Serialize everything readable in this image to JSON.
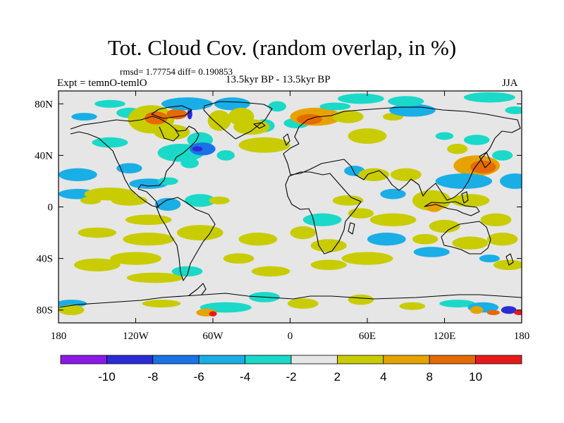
{
  "map": {
    "title": "Tot. Cloud Cov. (random overlap, in %)",
    "stats_line": "rmsd= 1.77754 diff= 0.190853",
    "experiment_label": "Expt = temnO-temlO",
    "period_label": "13.5kyr BP - 13.5kyr BP",
    "season_label": "JJA",
    "projection": "cylindrical equidistant",
    "lon_range": [
      -180,
      180
    ],
    "lat_range": [
      -90,
      90
    ],
    "lon_ticks": [
      {
        "value": -180,
        "label": "180"
      },
      {
        "value": -120,
        "label": "120W"
      },
      {
        "value": -60,
        "label": "60W"
      },
      {
        "value": 0,
        "label": "0"
      },
      {
        "value": 60,
        "label": "60E"
      },
      {
        "value": 120,
        "label": "120E"
      },
      {
        "value": 180,
        "label": "180"
      }
    ],
    "lat_ticks": [
      {
        "value": 80,
        "label": "80N"
      },
      {
        "value": 40,
        "label": "40N"
      },
      {
        "value": 0,
        "label": "0"
      },
      {
        "value": -40,
        "label": "40S"
      },
      {
        "value": -80,
        "label": "80S"
      }
    ],
    "colorbar": {
      "colors": [
        "#8c1ae6",
        "#2b2bd6",
        "#1a73e6",
        "#1aaee6",
        "#1ad9c8",
        "#e6e6e6",
        "#c8cc00",
        "#e6a300",
        "#e66a00",
        "#e61a1a"
      ],
      "tick_labels": [
        "-10",
        "-8",
        "-6",
        "-4",
        "-2",
        "2",
        "4",
        "8",
        "10"
      ]
    },
    "anomaly_regions": [
      {
        "lon": 155,
        "lat": 85,
        "rx": 20,
        "ry": 4,
        "level": 4
      },
      {
        "lon": 175,
        "lat": 75,
        "rx": 8,
        "ry": 3,
        "level": 4
      },
      {
        "lon": -140,
        "lat": 80,
        "rx": 12,
        "ry": 3,
        "level": 4
      },
      {
        "lon": -160,
        "lat": 70,
        "rx": 10,
        "ry": 3,
        "level": 3
      },
      {
        "lon": -125,
        "lat": 73,
        "rx": 10,
        "ry": 4,
        "level": 4
      },
      {
        "lon": -108,
        "lat": 68,
        "rx": 18,
        "ry": 11,
        "level": 6
      },
      {
        "lon": -104,
        "lat": 69,
        "rx": 9,
        "ry": 5,
        "level": 8
      },
      {
        "lon": -88,
        "lat": 72,
        "rx": 8,
        "ry": 4,
        "level": 8
      },
      {
        "lon": -78,
        "lat": 72,
        "rx": 2,
        "ry": 4,
        "level": 1
      },
      {
        "lon": -92,
        "lat": 58,
        "rx": 14,
        "ry": 6,
        "level": 6
      },
      {
        "lon": -80,
        "lat": 80,
        "rx": 20,
        "ry": 5,
        "level": 3
      },
      {
        "lon": -45,
        "lat": 80,
        "rx": 14,
        "ry": 5,
        "level": 3
      },
      {
        "lon": -55,
        "lat": 67,
        "rx": 9,
        "ry": 8,
        "level": 6
      },
      {
        "lon": -38,
        "lat": 70,
        "rx": 10,
        "ry": 7,
        "level": 6
      },
      {
        "lon": -20,
        "lat": 63,
        "rx": 8,
        "ry": 5,
        "level": 4
      },
      {
        "lon": -10,
        "lat": 78,
        "rx": 7,
        "ry": 4,
        "level": 4
      },
      {
        "lon": -85,
        "lat": 42,
        "rx": 18,
        "ry": 7,
        "level": 4
      },
      {
        "lon": -70,
        "lat": 52,
        "rx": 10,
        "ry": 6,
        "level": 4
      },
      {
        "lon": -68,
        "lat": 45,
        "rx": 10,
        "ry": 5,
        "level": 2
      },
      {
        "lon": -72,
        "lat": 45,
        "rx": 4,
        "ry": 2,
        "level": 1
      },
      {
        "lon": -50,
        "lat": 40,
        "rx": 7,
        "ry": 4,
        "level": 4
      },
      {
        "lon": -78,
        "lat": 34,
        "rx": 7,
        "ry": 4,
        "level": 4
      },
      {
        "lon": -30,
        "lat": 62,
        "rx": 14,
        "ry": 6,
        "level": 6
      },
      {
        "lon": -20,
        "lat": 48,
        "rx": 20,
        "ry": 6,
        "level": 6
      },
      {
        "lon": 5,
        "lat": 65,
        "rx": 10,
        "ry": 4,
        "level": 4
      },
      {
        "lon": 20,
        "lat": 70,
        "rx": 20,
        "ry": 7,
        "level": 7
      },
      {
        "lon": 15,
        "lat": 68,
        "rx": 10,
        "ry": 4,
        "level": 8
      },
      {
        "lon": 45,
        "lat": 70,
        "rx": 12,
        "ry": 5,
        "level": 6
      },
      {
        "lon": 35,
        "lat": 78,
        "rx": 12,
        "ry": 3,
        "level": 4
      },
      {
        "lon": 60,
        "lat": 55,
        "rx": 15,
        "ry": 6,
        "level": 6
      },
      {
        "lon": 80,
        "lat": 70,
        "rx": 8,
        "ry": 3,
        "level": 6
      },
      {
        "lon": 95,
        "lat": 75,
        "rx": 18,
        "ry": 5,
        "level": 3
      },
      {
        "lon": 90,
        "lat": 82,
        "rx": 14,
        "ry": 4,
        "level": 4
      },
      {
        "lon": 55,
        "lat": 84,
        "rx": 18,
        "ry": 4,
        "level": 4
      },
      {
        "lon": 145,
        "lat": 52,
        "rx": 10,
        "ry": 4,
        "level": 4
      },
      {
        "lon": 120,
        "lat": 55,
        "rx": 7,
        "ry": 3,
        "level": 4
      },
      {
        "lon": 130,
        "lat": 45,
        "rx": 8,
        "ry": 4,
        "level": 6
      },
      {
        "lon": 145,
        "lat": 32,
        "rx": 18,
        "ry": 8,
        "level": 7
      },
      {
        "lon": 150,
        "lat": 31,
        "rx": 10,
        "ry": 5,
        "level": 8
      },
      {
        "lon": 135,
        "lat": 20,
        "rx": 22,
        "ry": 6,
        "level": 3
      },
      {
        "lon": 175,
        "lat": 20,
        "rx": 12,
        "ry": 6,
        "level": 3
      },
      {
        "lon": 165,
        "lat": 40,
        "rx": 8,
        "ry": 4,
        "level": 4
      },
      {
        "lon": -165,
        "lat": 25,
        "rx": 15,
        "ry": 5,
        "level": 3
      },
      {
        "lon": -165,
        "lat": 10,
        "rx": 15,
        "ry": 4,
        "level": 3
      },
      {
        "lon": -140,
        "lat": 50,
        "rx": 14,
        "ry": 4,
        "level": 4
      },
      {
        "lon": -140,
        "lat": 10,
        "rx": 20,
        "ry": 5,
        "level": 6
      },
      {
        "lon": -155,
        "lat": 5,
        "rx": 8,
        "ry": 3,
        "level": 6
      },
      {
        "lon": -125,
        "lat": 30,
        "rx": 10,
        "ry": 4,
        "level": 3
      },
      {
        "lon": -110,
        "lat": 18,
        "rx": 15,
        "ry": 4,
        "level": 3
      },
      {
        "lon": -125,
        "lat": 5,
        "rx": 14,
        "ry": 4,
        "level": 6
      },
      {
        "lon": -95,
        "lat": 2,
        "rx": 10,
        "ry": 5,
        "level": 3
      },
      {
        "lon": -95,
        "lat": 20,
        "rx": 8,
        "ry": 3,
        "level": 4
      },
      {
        "lon": -70,
        "lat": 5,
        "rx": 12,
        "ry": 5,
        "level": 4
      },
      {
        "lon": -55,
        "lat": 5,
        "rx": 8,
        "ry": 3,
        "level": 6
      },
      {
        "lon": -70,
        "lat": -20,
        "rx": 18,
        "ry": 6,
        "level": 6
      },
      {
        "lon": -110,
        "lat": -10,
        "rx": 18,
        "ry": 4,
        "level": 6
      },
      {
        "lon": -150,
        "lat": -20,
        "rx": 15,
        "ry": 4,
        "level": 6
      },
      {
        "lon": -110,
        "lat": -25,
        "rx": 20,
        "ry": 5,
        "level": 6
      },
      {
        "lon": -120,
        "lat": -40,
        "rx": 20,
        "ry": 5,
        "level": 6
      },
      {
        "lon": -150,
        "lat": -45,
        "rx": 18,
        "ry": 5,
        "level": 6
      },
      {
        "lon": -105,
        "lat": -55,
        "rx": 22,
        "ry": 4,
        "level": 6
      },
      {
        "lon": -80,
        "lat": -50,
        "rx": 12,
        "ry": 4,
        "level": 4
      },
      {
        "lon": -40,
        "lat": -40,
        "rx": 12,
        "ry": 4,
        "level": 6
      },
      {
        "lon": -25,
        "lat": -25,
        "rx": 15,
        "ry": 5,
        "level": 6
      },
      {
        "lon": -15,
        "lat": -50,
        "rx": 15,
        "ry": 4,
        "level": 6
      },
      {
        "lon": 10,
        "lat": -20,
        "rx": 10,
        "ry": 5,
        "level": 6
      },
      {
        "lon": 30,
        "lat": -30,
        "rx": 14,
        "ry": 5,
        "level": 6
      },
      {
        "lon": 30,
        "lat": -45,
        "rx": 14,
        "ry": 4,
        "level": 6
      },
      {
        "lon": 25,
        "lat": -10,
        "rx": 15,
        "ry": 5,
        "level": 4
      },
      {
        "lon": 45,
        "lat": 5,
        "rx": 12,
        "ry": 4,
        "level": 6
      },
      {
        "lon": 50,
        "lat": 28,
        "rx": 8,
        "ry": 4,
        "level": 3
      },
      {
        "lon": 65,
        "lat": 25,
        "rx": 12,
        "ry": 5,
        "level": 6
      },
      {
        "lon": 90,
        "lat": 25,
        "rx": 12,
        "ry": 5,
        "level": 6
      },
      {
        "lon": 80,
        "lat": 10,
        "rx": 10,
        "ry": 4,
        "level": 3
      },
      {
        "lon": 110,
        "lat": 5,
        "rx": 15,
        "ry": 8,
        "level": 6
      },
      {
        "lon": 112,
        "lat": 0,
        "rx": 6,
        "ry": 4,
        "level": 7
      },
      {
        "lon": 140,
        "lat": 5,
        "rx": 15,
        "ry": 5,
        "level": 6
      },
      {
        "lon": 80,
        "lat": -10,
        "rx": 18,
        "ry": 5,
        "level": 6
      },
      {
        "lon": 55,
        "lat": -5,
        "rx": 10,
        "ry": 4,
        "level": 6
      },
      {
        "lon": 75,
        "lat": -25,
        "rx": 15,
        "ry": 5,
        "level": 3
      },
      {
        "lon": 60,
        "lat": -40,
        "rx": 20,
        "ry": 5,
        "level": 6
      },
      {
        "lon": 120,
        "lat": -15,
        "rx": 12,
        "ry": 5,
        "level": 6
      },
      {
        "lon": 105,
        "lat": -25,
        "rx": 10,
        "ry": 4,
        "level": 6
      },
      {
        "lon": 110,
        "lat": -35,
        "rx": 14,
        "ry": 4,
        "level": 3
      },
      {
        "lon": 140,
        "lat": -28,
        "rx": 14,
        "ry": 5,
        "level": 6
      },
      {
        "lon": 160,
        "lat": -10,
        "rx": 12,
        "ry": 5,
        "level": 6
      },
      {
        "lon": 165,
        "lat": -25,
        "rx": 12,
        "ry": 5,
        "level": 6
      },
      {
        "lon": 170,
        "lat": -45,
        "rx": 12,
        "ry": 4,
        "level": 6
      },
      {
        "lon": 155,
        "lat": -40,
        "rx": 8,
        "ry": 3,
        "level": 3
      },
      {
        "lon": -170,
        "lat": -75,
        "rx": 12,
        "ry": 3,
        "level": 3
      },
      {
        "lon": -170,
        "lat": -80,
        "rx": 10,
        "ry": 4,
        "level": 6
      },
      {
        "lon": -100,
        "lat": -75,
        "rx": 15,
        "ry": 3,
        "level": 6
      },
      {
        "lon": -50,
        "lat": -78,
        "rx": 20,
        "ry": 4,
        "level": 4
      },
      {
        "lon": -65,
        "lat": -82,
        "rx": 8,
        "ry": 3,
        "level": 7
      },
      {
        "lon": -60,
        "lat": -83,
        "rx": 3,
        "ry": 2,
        "level": 9
      },
      {
        "lon": -20,
        "lat": -70,
        "rx": 12,
        "ry": 4,
        "level": 4
      },
      {
        "lon": 10,
        "lat": -75,
        "rx": 12,
        "ry": 4,
        "level": 6
      },
      {
        "lon": 55,
        "lat": -72,
        "rx": 10,
        "ry": 4,
        "level": 6
      },
      {
        "lon": 95,
        "lat": -77,
        "rx": 10,
        "ry": 3,
        "level": 6
      },
      {
        "lon": 130,
        "lat": -75,
        "rx": 14,
        "ry": 3,
        "level": 4
      },
      {
        "lon": 150,
        "lat": -78,
        "rx": 12,
        "ry": 4,
        "level": 3
      },
      {
        "lon": 145,
        "lat": -80,
        "rx": 5,
        "ry": 3,
        "level": 7
      },
      {
        "lon": 158,
        "lat": -82,
        "rx": 5,
        "ry": 2,
        "level": 8
      },
      {
        "lon": 170,
        "lat": -80,
        "rx": 6,
        "ry": 3,
        "level": 1
      },
      {
        "lon": 178,
        "lat": -82,
        "rx": 4,
        "ry": 2,
        "level": 9
      }
    ]
  }
}
